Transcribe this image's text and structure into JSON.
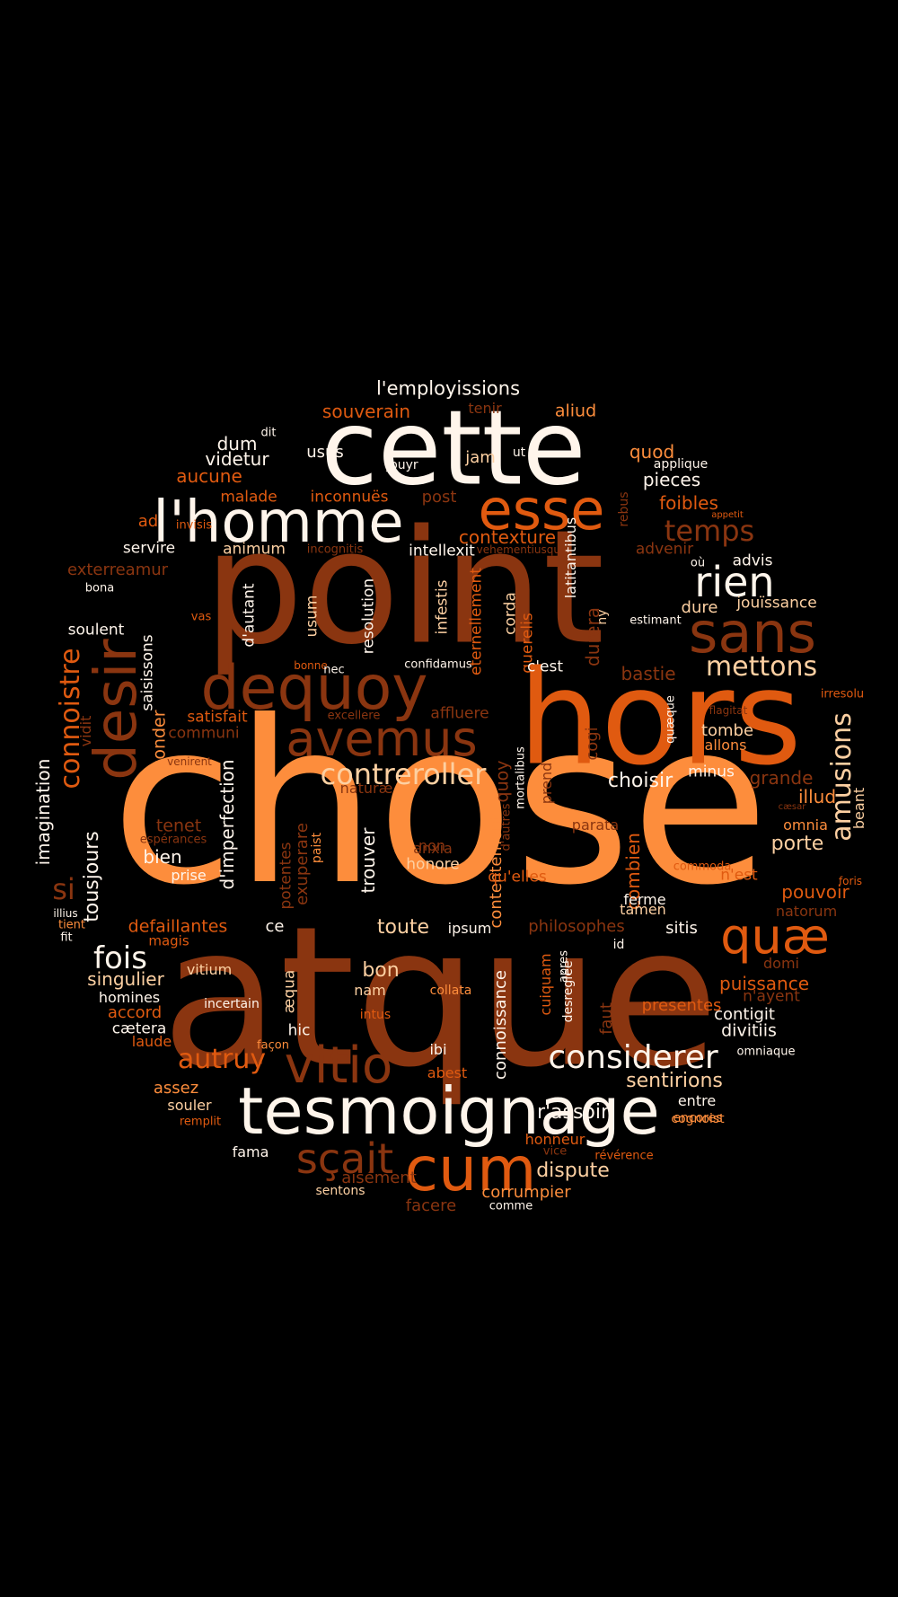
{
  "palette": {
    "background": "#000000",
    "dark": "#8a3510",
    "mid": "#e05a10",
    "light": "#fd8d3c",
    "pale": "#fdd0a2",
    "cream": "#fff5eb"
  },
  "words": [
    "chose",
    "point",
    "atque",
    "hors",
    "cette",
    "tesmoignage",
    "l'homme",
    "esse",
    "dequoy",
    "desir",
    "sans",
    "avemus",
    "cum",
    "vitio",
    "rien",
    "quæ",
    "sçait",
    "considerer",
    "amusions",
    "contreroller",
    "mettons",
    "temps",
    "connoistre",
    "fois",
    "autruy",
    "l'employissions",
    "si",
    "choisir",
    "illud",
    "dispute",
    "sentirions",
    "r'assoir",
    "puissance",
    "toute",
    "bon",
    "pieces",
    "foibles",
    "contexture",
    "souverain",
    "aliud",
    "quod",
    "dum",
    "videtur",
    "usus",
    "jam",
    "aucune",
    "ad",
    "malade",
    "inconnuës",
    "post",
    "servire",
    "animum",
    "intellexit",
    "advenir",
    "advis",
    "jouïssance",
    "dure",
    "bastie",
    "d'autant",
    "usum",
    "resolution",
    "infestis",
    "eternellement",
    "corda",
    "querelis",
    "durera",
    "c'est",
    "saisissons",
    "soulent",
    "satisfait",
    "affluere",
    "tombe",
    "allons",
    "minus",
    "imagination",
    "tousjours",
    "sonder",
    "d'imperfection",
    "potentes",
    "exuperare",
    "trouver",
    "non",
    "anxia",
    "honore",
    "contentement",
    "qu'elles",
    "combien",
    "parata",
    "porte",
    "omnia",
    "n'est",
    "pouvoir",
    "natorum",
    "ferme",
    "grande",
    "tenet",
    "bien",
    "prise",
    "defaillantes",
    "ce",
    "philosophes",
    "sitis",
    "ipsum",
    "tamen",
    "singulier",
    "homines",
    "accord",
    "cætera",
    "laude",
    "vitium",
    "æqua",
    "nam",
    "connoissance",
    "cuiquam",
    "desreglée",
    "faut",
    "contigit",
    "divitiis",
    "n'ayent",
    "presentes",
    "domi",
    "hic",
    "ibi",
    "abest",
    "assez",
    "souler",
    "entre",
    "encores",
    "aisément",
    "corrumpier",
    "facere",
    "sentons",
    "fama",
    "honneur",
    "tenir",
    "applique",
    "ut",
    "jouyr",
    "dit",
    "invisis",
    "incognitis",
    "vehementiusque",
    "rebus",
    "appetit",
    "où",
    "estimant",
    "irresolu",
    "flagitat",
    "quæque",
    "beant",
    "mortalibus",
    "prend",
    "cogi",
    "vas",
    "latitantibus",
    "ny",
    "bonne",
    "nec",
    "confidamus",
    "communi",
    "excellere",
    "venirent",
    "vidit",
    "espérances",
    "paist",
    "d'autres",
    "commoda",
    "foris",
    "tient",
    "illius",
    "fit",
    "magis",
    "incertain",
    "collata",
    "intus",
    "façon",
    "remplit",
    "cognoist",
    "révérence",
    "comme",
    "vice",
    "omniaque",
    "id",
    "apres",
    "quoy",
    "naturæ",
    "exterreamur",
    "bona",
    "cæsar"
  ]
}
